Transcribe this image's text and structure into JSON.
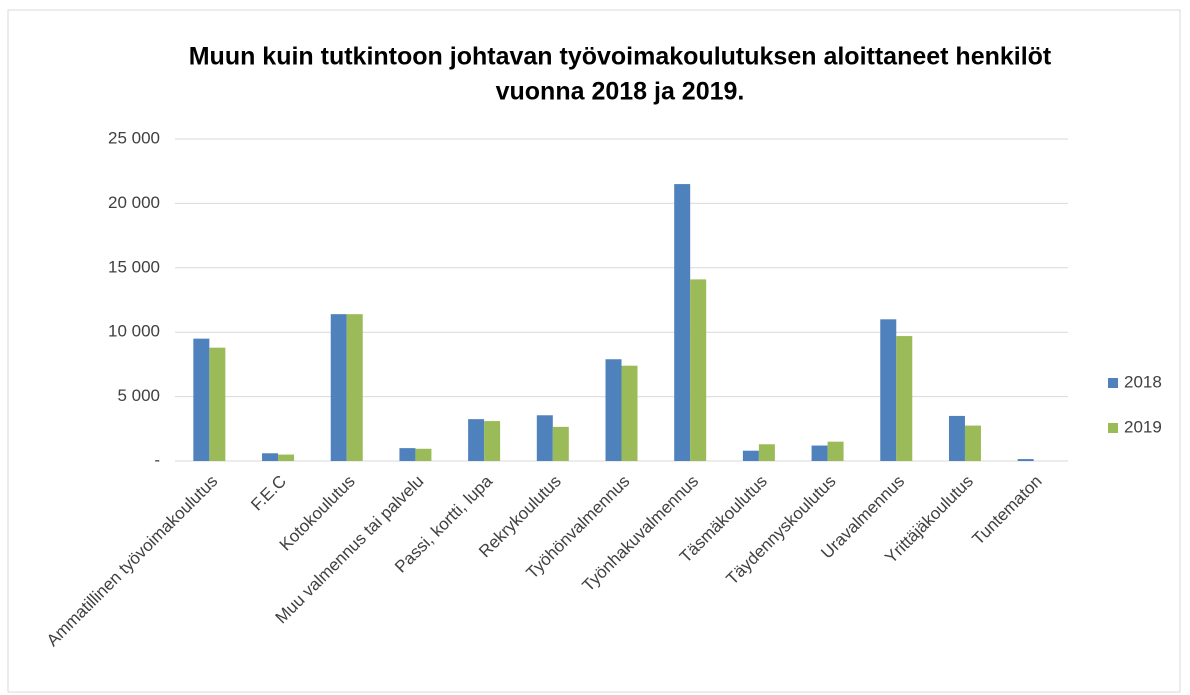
{
  "chart_data": {
    "type": "bar",
    "title": [
      "Muun kuin tutkintoon johtavan työvoimakoulutuksen aloittaneet henkilöt",
      "vuonna 2018 ja 2019."
    ],
    "categories": [
      "Ammatillinen työvoimakoulutus",
      "F.E.C",
      "Kotokoulutus",
      "Muu valmennus tai palvelu",
      "Passi, kortti, lupa",
      "Rekrykoulutus",
      "Työhönvalmennus",
      "Työnhakuvalmennus",
      "Täsmäkoulutus",
      "Täydennyskoulutus",
      "Uravalmennus",
      "Yrittäjäkoulutus",
      "Tuntematon"
    ],
    "series": [
      {
        "name": "2018",
        "color": "#4f81bd",
        "values": [
          9500,
          600,
          11400,
          1000,
          3250,
          3550,
          7900,
          21500,
          800,
          1200,
          11000,
          3500,
          150
        ]
      },
      {
        "name": "2019",
        "color": "#9bbb59",
        "values": [
          8800,
          500,
          11400,
          950,
          3100,
          2650,
          7400,
          14100,
          1300,
          1500,
          9700,
          2750,
          0
        ]
      }
    ],
    "ylim": [
      0,
      25000
    ],
    "yticks": [
      {
        "value": 0,
        "label": "-"
      },
      {
        "value": 5000,
        "label": "5 000"
      },
      {
        "value": 10000,
        "label": "10 000"
      },
      {
        "value": 15000,
        "label": "15 000"
      },
      {
        "value": 20000,
        "label": "20 000"
      },
      {
        "value": 25000,
        "label": "25 000"
      }
    ],
    "grid": true,
    "legend": "right"
  }
}
